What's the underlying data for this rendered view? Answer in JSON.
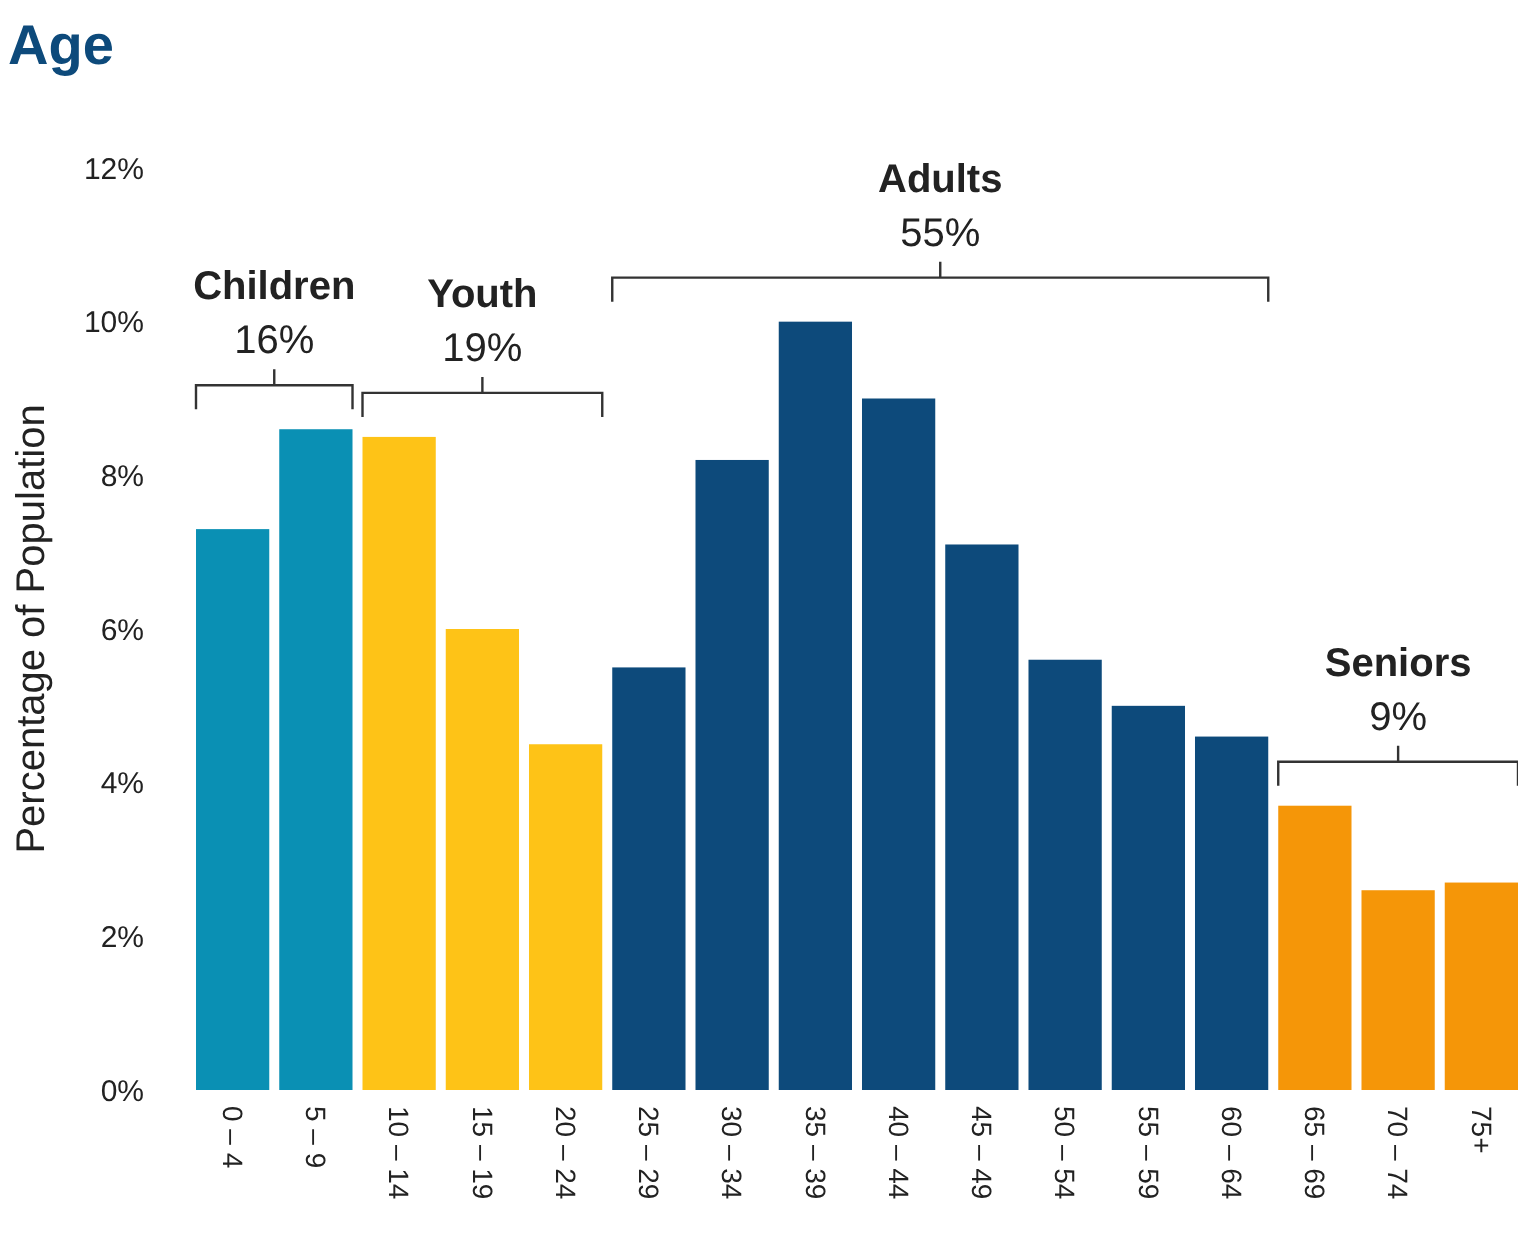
{
  "chart_data": {
    "type": "bar",
    "title": "Age",
    "ylabel": "Percentage of Population",
    "categories": [
      "0 – 4",
      "5 – 9",
      "10 – 14",
      "15 – 19",
      "20 – 24",
      "25 – 29",
      "30 – 34",
      "35 – 39",
      "40 – 44",
      "45 – 49",
      "50 – 54",
      "55 – 59",
      "60 – 64",
      "65 – 69",
      "70 – 74",
      "75+"
    ],
    "values": [
      7.3,
      8.6,
      8.5,
      6.0,
      4.5,
      5.5,
      8.2,
      10.0,
      9.0,
      7.1,
      5.6,
      5.0,
      4.6,
      3.7,
      2.6,
      2.7
    ],
    "colors": [
      "#0a90b4",
      "#0a90b4",
      "#fec317",
      "#fec317",
      "#fec317",
      "#0d4a7b",
      "#0d4a7b",
      "#0d4a7b",
      "#0d4a7b",
      "#0d4a7b",
      "#0d4a7b",
      "#0d4a7b",
      "#0d4a7b",
      "#f59608",
      "#f59608",
      "#f59608"
    ],
    "ylim": [
      0,
      12
    ],
    "yticks": [
      {
        "value": 0,
        "label": "0%"
      },
      {
        "value": 2,
        "label": "2%"
      },
      {
        "value": 4,
        "label": "4%"
      },
      {
        "value": 6,
        "label": "6%"
      },
      {
        "value": 8,
        "label": "8%"
      },
      {
        "value": 10,
        "label": "10%"
      },
      {
        "value": 12,
        "label": "12%"
      }
    ],
    "annotations": [
      "Children\n16%",
      "Youth\n19%",
      "Adults\n55%",
      "Seniors\n9%"
    ],
    "grid": false
  }
}
